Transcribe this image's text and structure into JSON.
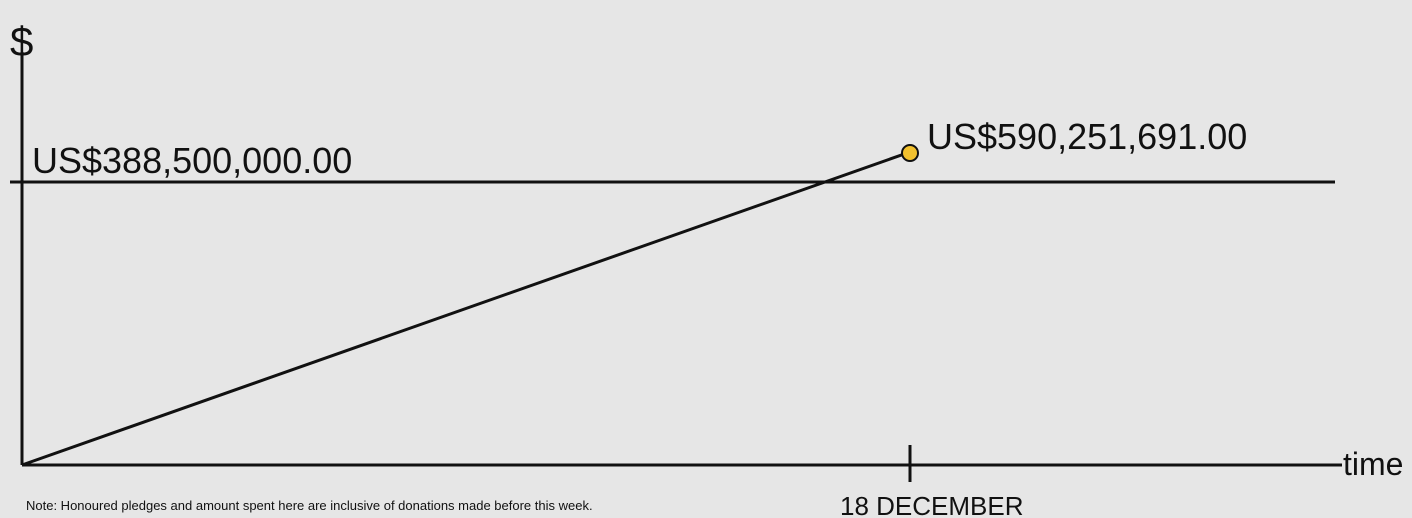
{
  "chart_data": {
    "type": "line",
    "ylabel": "$",
    "xlabel": "time",
    "x_ticks": [
      "18 DECEMBER"
    ],
    "target": {
      "value": 388500000,
      "label": "US$388,500,000.00"
    },
    "series": [
      {
        "points": [
          {
            "x": "start",
            "y": 0
          },
          {
            "x": "18 DECEMBER",
            "y": 590251691
          }
        ]
      }
    ],
    "endpoint_label": "US$590,251,691.00",
    "grid": false,
    "colors": {
      "background": "#e6e6e6",
      "line": "#111111",
      "marker": "#f2c12e"
    }
  },
  "note": "Note: Honoured pledges and amount spent here are inclusive of donations made before this week."
}
